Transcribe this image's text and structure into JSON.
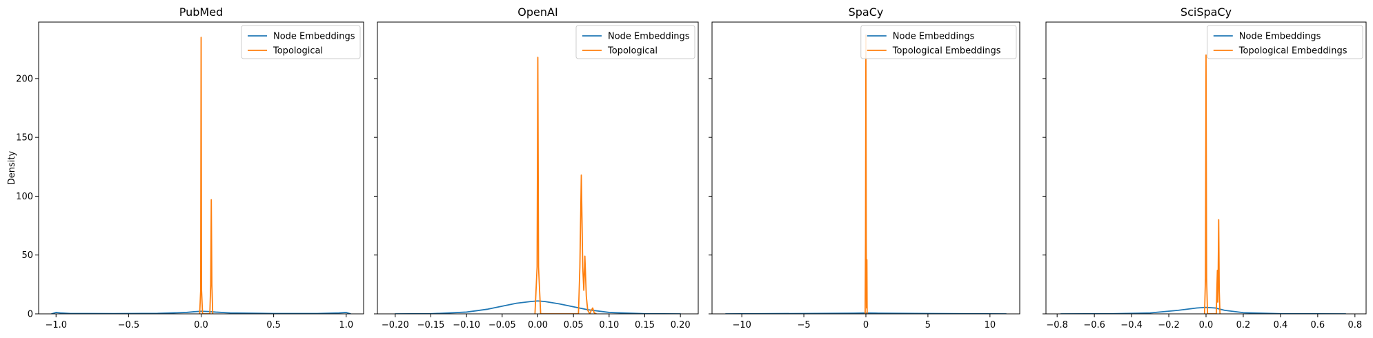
{
  "chart_data": [
    {
      "type": "line",
      "title": "PubMed",
      "xlabel": "",
      "ylabel": "Density",
      "xlim": [
        -1.12,
        1.12
      ],
      "ylim": [
        0,
        248
      ],
      "xticks": [
        -1.0,
        -0.5,
        0.0,
        0.5,
        1.0
      ],
      "xtick_labels": [
        "−1.0",
        "−0.5",
        "0.0",
        "0.5",
        "1.0"
      ],
      "yticks": [
        0,
        50,
        100,
        150,
        200
      ],
      "ytick_labels": [
        "0",
        "50",
        "100",
        "150",
        "200"
      ],
      "legend_position": "top-right",
      "series": [
        {
          "name": "Node Embeddings",
          "color": "#1f77b4",
          "points": [
            [
              -1.03,
              0
            ],
            [
              -1.0,
              1.2
            ],
            [
              -0.97,
              0.8
            ],
            [
              -0.9,
              0.3
            ],
            [
              -0.6,
              0.2
            ],
            [
              -0.3,
              0.4
            ],
            [
              -0.1,
              1.2
            ],
            [
              -0.05,
              1.8
            ],
            [
              0.0,
              2.2
            ],
            [
              0.05,
              2.0
            ],
            [
              0.1,
              1.5
            ],
            [
              0.2,
              0.8
            ],
            [
              0.5,
              0.3
            ],
            [
              0.8,
              0.3
            ],
            [
              0.95,
              0.8
            ],
            [
              1.0,
              1.2
            ],
            [
              1.03,
              0
            ]
          ]
        },
        {
          "name": "Topological",
          "color": "#ff7f0e",
          "points": [
            [
              -0.01,
              0
            ],
            [
              -0.003,
              20
            ],
            [
              0.0,
              235
            ],
            [
              0.003,
              20
            ],
            [
              0.01,
              0
            ],
            [
              0.06,
              0
            ],
            [
              0.066,
              25
            ],
            [
              0.07,
              97
            ],
            [
              0.074,
              25
            ],
            [
              0.08,
              0
            ]
          ]
        }
      ]
    },
    {
      "type": "line",
      "title": "OpenAI",
      "xlabel": "",
      "ylabel": "",
      "xlim": [
        -0.225,
        0.225
      ],
      "ylim": [
        0,
        248
      ],
      "xticks": [
        -0.2,
        -0.15,
        -0.1,
        -0.05,
        0.0,
        0.05,
        0.1,
        0.15,
        0.2
      ],
      "xtick_labels": [
        "−0.20",
        "−0.15",
        "−0.10",
        "−0.05",
        "0.00",
        "0.05",
        "0.10",
        "0.15",
        "0.20"
      ],
      "yticks": [
        0,
        50,
        100,
        150,
        200
      ],
      "ytick_labels": [],
      "legend_position": "top-right",
      "series": [
        {
          "name": "Node Embeddings",
          "color": "#1f77b4",
          "points": [
            [
              -0.2,
              0
            ],
            [
              -0.15,
              0.1
            ],
            [
              -0.1,
              1.5
            ],
            [
              -0.07,
              4
            ],
            [
              -0.05,
              6.5
            ],
            [
              -0.03,
              9
            ],
            [
              -0.01,
              10.5
            ],
            [
              0.0,
              11
            ],
            [
              0.01,
              10.5
            ],
            [
              0.03,
              8.5
            ],
            [
              0.05,
              6
            ],
            [
              0.07,
              3.5
            ],
            [
              0.1,
              1.2
            ],
            [
              0.15,
              0.1
            ],
            [
              0.2,
              0
            ]
          ]
        },
        {
          "name": "Topological",
          "color": "#ff7f0e",
          "points": [
            [
              -0.004,
              0
            ],
            [
              -0.001,
              40
            ],
            [
              0.0,
              218
            ],
            [
              0.001,
              40
            ],
            [
              0.004,
              0
            ],
            [
              0.057,
              0
            ],
            [
              0.059,
              40
            ],
            [
              0.061,
              118
            ],
            [
              0.063,
              40
            ],
            [
              0.0645,
              20
            ],
            [
              0.066,
              49
            ],
            [
              0.068,
              15
            ],
            [
              0.07,
              3
            ],
            [
              0.073,
              0
            ],
            [
              0.075,
              3
            ],
            [
              0.077,
              5
            ],
            [
              0.079,
              1
            ],
            [
              0.082,
              0
            ]
          ]
        }
      ]
    },
    {
      "type": "line",
      "title": "SpaCy",
      "xlabel": "",
      "ylabel": "",
      "xlim": [
        -12.4,
        12.4
      ],
      "ylim": [
        0,
        248
      ],
      "xticks": [
        -10,
        -5,
        0,
        5,
        10
      ],
      "xtick_labels": [
        "−10",
        "−5",
        "0",
        "5",
        "10"
      ],
      "yticks": [
        0,
        50,
        100,
        150,
        200
      ],
      "ytick_labels": [],
      "legend_position": "top-right",
      "series": [
        {
          "name": "Node Embeddings",
          "color": "#1f77b4",
          "points": [
            [
              -11.3,
              0
            ],
            [
              -5,
              0.3
            ],
            [
              -1,
              0.6
            ],
            [
              0,
              0.8
            ],
            [
              1,
              0.6
            ],
            [
              5,
              0.3
            ],
            [
              11.3,
              0
            ]
          ]
        },
        {
          "name": "Topological Embeddings",
          "color": "#ff7f0e",
          "points": [
            [
              -0.06,
              0
            ],
            [
              -0.03,
              60
            ],
            [
              0.0,
              237
            ],
            [
              0.03,
              60
            ],
            [
              0.05,
              5
            ],
            [
              0.08,
              46
            ],
            [
              0.1,
              0
            ]
          ]
        }
      ]
    },
    {
      "type": "line",
      "title": "SciSpaCy",
      "xlabel": "",
      "ylabel": "",
      "xlim": [
        -0.86,
        0.86
      ],
      "ylim": [
        0,
        248
      ],
      "xticks": [
        -0.8,
        -0.6,
        -0.4,
        -0.2,
        0.0,
        0.2,
        0.4,
        0.6,
        0.8
      ],
      "xtick_labels": [
        "−0.8",
        "−0.6",
        "−0.4",
        "−0.2",
        "0.0",
        "0.2",
        "0.4",
        "0.6",
        "0.8"
      ],
      "yticks": [
        0,
        50,
        100,
        150,
        200
      ],
      "ytick_labels": [],
      "legend_position": "top-right",
      "series": [
        {
          "name": "Node Embeddings",
          "color": "#1f77b4",
          "points": [
            [
              -0.78,
              0
            ],
            [
              -0.5,
              0.1
            ],
            [
              -0.3,
              0.8
            ],
            [
              -0.15,
              3
            ],
            [
              -0.05,
              5
            ],
            [
              0.0,
              5.5
            ],
            [
              0.05,
              5
            ],
            [
              0.1,
              3
            ],
            [
              0.2,
              1
            ],
            [
              0.4,
              0.1
            ],
            [
              0.75,
              0
            ]
          ]
        },
        {
          "name": "Topological Embeddings",
          "color": "#ff7f0e",
          "points": [
            [
              -0.008,
              0
            ],
            [
              -0.003,
              30
            ],
            [
              0.0,
              220
            ],
            [
              0.003,
              30
            ],
            [
              0.008,
              0
            ],
            [
              0.055,
              0
            ],
            [
              0.058,
              20
            ],
            [
              0.061,
              37
            ],
            [
              0.063,
              10
            ],
            [
              0.065,
              30
            ],
            [
              0.068,
              80
            ],
            [
              0.071,
              20
            ],
            [
              0.075,
              0
            ]
          ]
        }
      ]
    }
  ]
}
